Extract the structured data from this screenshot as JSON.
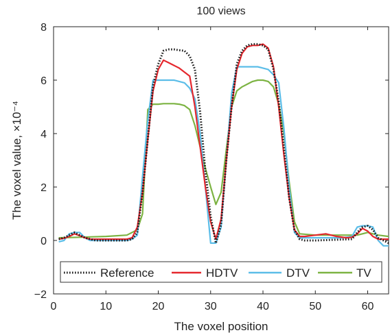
{
  "chart_data": {
    "type": "line",
    "title": "100 views",
    "xlabel": "The voxel position",
    "ylabel": "The voxel value, ×10⁻⁴",
    "xlim": [
      0,
      64
    ],
    "ylim": [
      -2,
      8
    ],
    "xticks": [
      0,
      10,
      20,
      30,
      40,
      50,
      60
    ],
    "yticks": [
      -2,
      0,
      2,
      4,
      6,
      8
    ],
    "xtick_labels": [
      "0",
      "10",
      "20",
      "30",
      "40",
      "50",
      "60"
    ],
    "ytick_labels": [
      "−2",
      "0",
      "2",
      "4",
      "6",
      "8"
    ],
    "grid": false,
    "legend": "bottom-inside",
    "series": [
      {
        "name": "Reference",
        "color": "#1a1a1a",
        "style": "dotted",
        "x": [
          1,
          2,
          3,
          4,
          5,
          6,
          7,
          8,
          14,
          15,
          16,
          17,
          18,
          19,
          20,
          21,
          22,
          23,
          24,
          25,
          26,
          27,
          28,
          29,
          30,
          31,
          32,
          33,
          34,
          35,
          36,
          37,
          38,
          39,
          40,
          41,
          42,
          43,
          44,
          45,
          46,
          47,
          48,
          50,
          57,
          58,
          59,
          60,
          61,
          62,
          64
        ],
        "values": [
          0.05,
          0.1,
          0.2,
          0.3,
          0.2,
          0.1,
          0.05,
          0.0,
          0.0,
          0.05,
          0.3,
          1.8,
          3.8,
          5.8,
          6.6,
          7.1,
          7.15,
          7.15,
          7.12,
          7.1,
          6.9,
          6.4,
          4.8,
          2.6,
          0.9,
          -0.1,
          0.6,
          3.0,
          5.0,
          6.6,
          7.1,
          7.3,
          7.35,
          7.35,
          7.3,
          7.15,
          6.4,
          5.2,
          3.5,
          1.6,
          0.4,
          0.05,
          0.0,
          0.0,
          0.05,
          0.3,
          0.5,
          0.55,
          0.4,
          0.1,
          -0.1
        ]
      },
      {
        "name": "HDTV",
        "color": "#e5272d",
        "style": "solid",
        "x": [
          1,
          2,
          3,
          4,
          5,
          6,
          7,
          14,
          15,
          16,
          17,
          18,
          19,
          20,
          21,
          22,
          23,
          24,
          25,
          26,
          27,
          28,
          29,
          30,
          31,
          32,
          33,
          34,
          35,
          36,
          37,
          38,
          39,
          40,
          41,
          42,
          43,
          44,
          45,
          46,
          47,
          48,
          50,
          52,
          54,
          56,
          57,
          58,
          59,
          60,
          61,
          62,
          64
        ],
        "values": [
          0.05,
          0.08,
          0.15,
          0.25,
          0.18,
          0.1,
          0.05,
          0.05,
          0.1,
          0.5,
          1.8,
          3.8,
          5.6,
          6.4,
          6.75,
          6.65,
          6.55,
          6.45,
          6.3,
          6.15,
          5.0,
          3.5,
          2.0,
          0.7,
          0.05,
          0.8,
          3.0,
          5.0,
          6.4,
          7.0,
          7.25,
          7.3,
          7.3,
          7.35,
          7.2,
          6.5,
          5.0,
          3.2,
          1.6,
          0.4,
          0.15,
          0.15,
          0.2,
          0.25,
          0.15,
          0.1,
          0.12,
          0.25,
          0.45,
          0.35,
          0.15,
          0.05,
          0.05
        ]
      },
      {
        "name": "DTV",
        "color": "#5bbde8",
        "style": "solid",
        "x": [
          1,
          2,
          3,
          4,
          5,
          6,
          7,
          14,
          15,
          16,
          17,
          18,
          19,
          20,
          21,
          22,
          23,
          24,
          25,
          26,
          27,
          28,
          29,
          30,
          31,
          32,
          33,
          34,
          35,
          36,
          37,
          38,
          39,
          40,
          41,
          42,
          43,
          44,
          45,
          46,
          47,
          48,
          50,
          55,
          57,
          58,
          59,
          60,
          61,
          62,
          63,
          64
        ],
        "values": [
          -0.05,
          0.0,
          0.25,
          0.3,
          0.3,
          0.1,
          0.0,
          0.0,
          0.05,
          0.2,
          2.4,
          4.5,
          6.0,
          6.0,
          6.0,
          6.0,
          6.0,
          5.95,
          5.9,
          5.7,
          5.3,
          4.0,
          2.0,
          -0.1,
          -0.1,
          0.5,
          3.0,
          5.5,
          6.5,
          6.5,
          6.5,
          6.5,
          6.5,
          6.45,
          6.4,
          6.2,
          5.9,
          4.2,
          2.0,
          0.3,
          0.1,
          0.1,
          0.1,
          0.1,
          0.15,
          0.5,
          0.55,
          0.55,
          0.5,
          0.0,
          -0.2,
          -0.2
        ]
      },
      {
        "name": "TV",
        "color": "#7cb342",
        "style": "solid",
        "x": [
          1,
          5,
          10,
          14,
          15,
          16,
          17,
          18,
          19,
          20,
          21,
          22,
          23,
          24,
          25,
          26,
          27,
          28,
          29,
          30,
          31,
          32,
          33,
          34,
          35,
          36,
          37,
          38,
          39,
          40,
          41,
          42,
          43,
          44,
          45,
          46,
          47,
          50,
          55,
          58,
          59,
          60,
          61,
          62,
          64
        ],
        "values": [
          0.1,
          0.12,
          0.15,
          0.2,
          0.3,
          0.4,
          1.0,
          4.9,
          5.1,
          5.1,
          5.12,
          5.12,
          5.12,
          5.1,
          5.05,
          4.9,
          4.3,
          3.5,
          2.7,
          2.0,
          1.35,
          1.8,
          3.4,
          5.0,
          5.6,
          5.75,
          5.85,
          5.95,
          6.0,
          6.0,
          5.95,
          5.75,
          5.1,
          4.0,
          2.2,
          0.7,
          0.25,
          0.2,
          0.2,
          0.2,
          0.25,
          0.3,
          0.25,
          0.2,
          0.15
        ]
      }
    ]
  }
}
